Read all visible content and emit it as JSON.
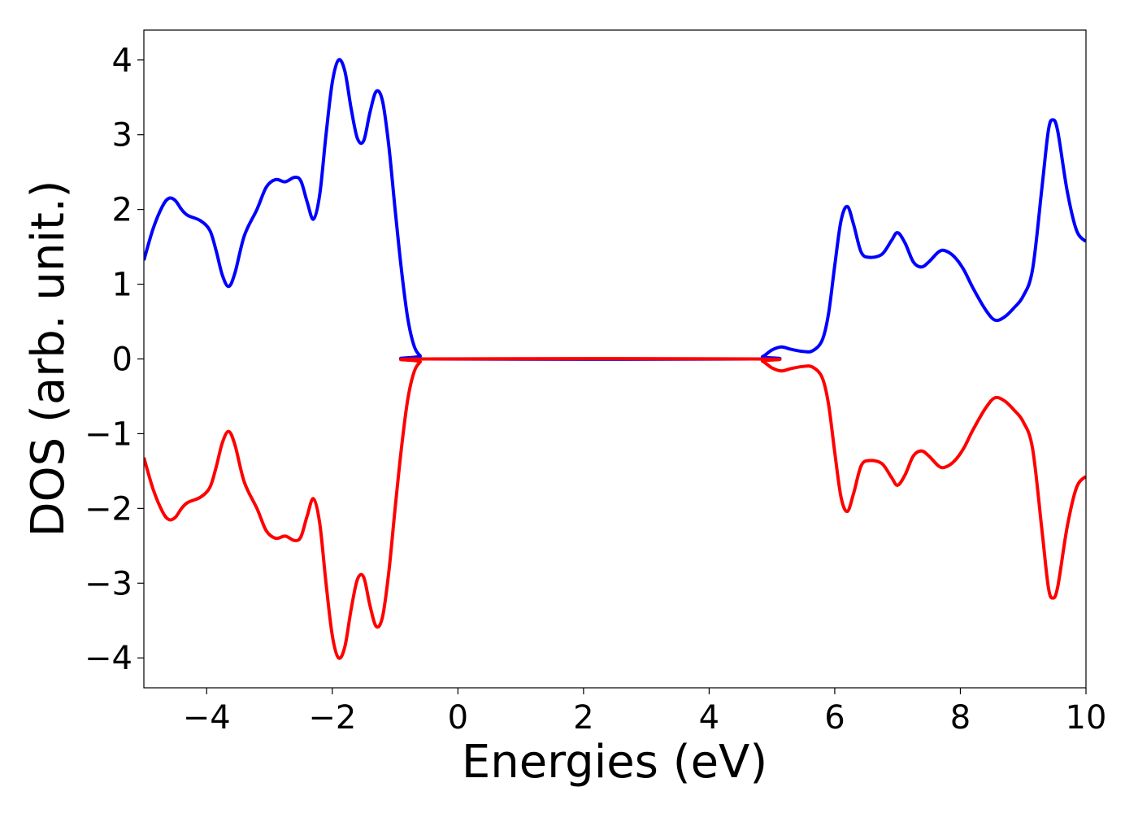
{
  "chart_data": {
    "type": "line",
    "title": "",
    "xlabel": "Energies (eV)",
    "ylabel": "DOS (arb. unit.)",
    "xlim": [
      -5,
      10
    ],
    "ylim": [
      -4.4,
      4.4
    ],
    "xticks": [
      -4,
      -2,
      0,
      2,
      4,
      6,
      8,
      10
    ],
    "xtick_labels": [
      "−4",
      "−2",
      "0",
      "2",
      "4",
      "6",
      "8",
      "10"
    ],
    "yticks": [
      4,
      3,
      2,
      1,
      0,
      -1,
      -2,
      -3,
      -4
    ],
    "ytick_labels": [
      "4",
      "3",
      "2",
      "1",
      "0",
      "−1",
      "−2",
      "−3",
      "−4"
    ],
    "grid": false,
    "legend": "none",
    "series": [
      {
        "color": "#0000ff",
        "points": [
          [
            -5.0,
            1.32
          ],
          [
            -4.85,
            1.75
          ],
          [
            -4.7,
            2.05
          ],
          [
            -4.6,
            2.15
          ],
          [
            -4.5,
            2.12
          ],
          [
            -4.4,
            2.0
          ],
          [
            -4.3,
            1.92
          ],
          [
            -4.1,
            1.85
          ],
          [
            -3.95,
            1.72
          ],
          [
            -3.85,
            1.45
          ],
          [
            -3.75,
            1.12
          ],
          [
            -3.65,
            0.97
          ],
          [
            -3.55,
            1.15
          ],
          [
            -3.4,
            1.65
          ],
          [
            -3.2,
            2.0
          ],
          [
            -3.05,
            2.3
          ],
          [
            -2.9,
            2.4
          ],
          [
            -2.75,
            2.37
          ],
          [
            -2.6,
            2.43
          ],
          [
            -2.5,
            2.38
          ],
          [
            -2.4,
            2.1
          ],
          [
            -2.3,
            1.87
          ],
          [
            -2.2,
            2.2
          ],
          [
            -2.1,
            3.0
          ],
          [
            -2.0,
            3.7
          ],
          [
            -1.9,
            4.0
          ],
          [
            -1.8,
            3.85
          ],
          [
            -1.7,
            3.35
          ],
          [
            -1.6,
            2.95
          ],
          [
            -1.5,
            2.92
          ],
          [
            -1.4,
            3.3
          ],
          [
            -1.3,
            3.58
          ],
          [
            -1.2,
            3.45
          ],
          [
            -1.1,
            2.85
          ],
          [
            -1.0,
            2.0
          ],
          [
            -0.9,
            1.2
          ],
          [
            -0.8,
            0.55
          ],
          [
            -0.7,
            0.18
          ],
          [
            -0.6,
            0.04
          ],
          [
            -0.5,
            0.0
          ],
          [
            4.7,
            0.0
          ],
          [
            4.85,
            0.03
          ],
          [
            5.0,
            0.12
          ],
          [
            5.15,
            0.16
          ],
          [
            5.3,
            0.13
          ],
          [
            5.5,
            0.1
          ],
          [
            5.65,
            0.11
          ],
          [
            5.8,
            0.25
          ],
          [
            5.9,
            0.6
          ],
          [
            6.0,
            1.25
          ],
          [
            6.1,
            1.85
          ],
          [
            6.2,
            2.04
          ],
          [
            6.3,
            1.8
          ],
          [
            6.42,
            1.43
          ],
          [
            6.55,
            1.36
          ],
          [
            6.75,
            1.4
          ],
          [
            6.9,
            1.58
          ],
          [
            7.0,
            1.69
          ],
          [
            7.12,
            1.55
          ],
          [
            7.25,
            1.3
          ],
          [
            7.38,
            1.23
          ],
          [
            7.5,
            1.3
          ],
          [
            7.65,
            1.43
          ],
          [
            7.75,
            1.45
          ],
          [
            7.9,
            1.37
          ],
          [
            8.05,
            1.2
          ],
          [
            8.2,
            0.95
          ],
          [
            8.4,
            0.66
          ],
          [
            8.55,
            0.52
          ],
          [
            8.7,
            0.56
          ],
          [
            8.85,
            0.68
          ],
          [
            9.0,
            0.84
          ],
          [
            9.15,
            1.2
          ],
          [
            9.3,
            2.3
          ],
          [
            9.4,
            3.05
          ],
          [
            9.47,
            3.2
          ],
          [
            9.55,
            3.05
          ],
          [
            9.7,
            2.25
          ],
          [
            9.85,
            1.72
          ],
          [
            10.0,
            1.57
          ]
        ]
      },
      {
        "color": "#ff0000",
        "points": [
          [
            -5.0,
            -1.32
          ],
          [
            -4.85,
            -1.75
          ],
          [
            -4.7,
            -2.05
          ],
          [
            -4.6,
            -2.15
          ],
          [
            -4.5,
            -2.12
          ],
          [
            -4.4,
            -2.0
          ],
          [
            -4.3,
            -1.92
          ],
          [
            -4.1,
            -1.85
          ],
          [
            -3.95,
            -1.72
          ],
          [
            -3.85,
            -1.45
          ],
          [
            -3.75,
            -1.12
          ],
          [
            -3.65,
            -0.97
          ],
          [
            -3.55,
            -1.15
          ],
          [
            -3.4,
            -1.65
          ],
          [
            -3.2,
            -2.0
          ],
          [
            -3.05,
            -2.3
          ],
          [
            -2.9,
            -2.4
          ],
          [
            -2.75,
            -2.37
          ],
          [
            -2.6,
            -2.43
          ],
          [
            -2.5,
            -2.38
          ],
          [
            -2.4,
            -2.1
          ],
          [
            -2.3,
            -1.87
          ],
          [
            -2.2,
            -2.2
          ],
          [
            -2.1,
            -3.0
          ],
          [
            -2.0,
            -3.7
          ],
          [
            -1.9,
            -4.0
          ],
          [
            -1.8,
            -3.85
          ],
          [
            -1.7,
            -3.35
          ],
          [
            -1.6,
            -2.95
          ],
          [
            -1.5,
            -2.92
          ],
          [
            -1.4,
            -3.3
          ],
          [
            -1.3,
            -3.58
          ],
          [
            -1.2,
            -3.45
          ],
          [
            -1.1,
            -2.85
          ],
          [
            -1.0,
            -2.0
          ],
          [
            -0.9,
            -1.2
          ],
          [
            -0.8,
            -0.55
          ],
          [
            -0.7,
            -0.18
          ],
          [
            -0.6,
            -0.04
          ],
          [
            -0.5,
            0.0
          ],
          [
            4.7,
            0.0
          ],
          [
            4.85,
            -0.03
          ],
          [
            5.0,
            -0.12
          ],
          [
            5.15,
            -0.16
          ],
          [
            5.3,
            -0.13
          ],
          [
            5.5,
            -0.1
          ],
          [
            5.65,
            -0.11
          ],
          [
            5.8,
            -0.25
          ],
          [
            5.9,
            -0.6
          ],
          [
            6.0,
            -1.25
          ],
          [
            6.1,
            -1.85
          ],
          [
            6.2,
            -2.04
          ],
          [
            6.3,
            -1.8
          ],
          [
            6.42,
            -1.43
          ],
          [
            6.55,
            -1.36
          ],
          [
            6.75,
            -1.4
          ],
          [
            6.9,
            -1.58
          ],
          [
            7.0,
            -1.69
          ],
          [
            7.12,
            -1.55
          ],
          [
            7.25,
            -1.3
          ],
          [
            7.38,
            -1.23
          ],
          [
            7.5,
            -1.3
          ],
          [
            7.65,
            -1.43
          ],
          [
            7.75,
            -1.45
          ],
          [
            7.9,
            -1.37
          ],
          [
            8.05,
            -1.2
          ],
          [
            8.2,
            -0.95
          ],
          [
            8.4,
            -0.66
          ],
          [
            8.55,
            -0.52
          ],
          [
            8.7,
            -0.56
          ],
          [
            8.85,
            -0.68
          ],
          [
            9.0,
            -0.84
          ],
          [
            9.15,
            -1.2
          ],
          [
            9.3,
            -2.3
          ],
          [
            9.4,
            -3.05
          ],
          [
            9.47,
            -3.2
          ],
          [
            9.55,
            -3.05
          ],
          [
            9.7,
            -2.25
          ],
          [
            9.85,
            -1.72
          ],
          [
            10.0,
            -1.57
          ]
        ]
      }
    ]
  }
}
